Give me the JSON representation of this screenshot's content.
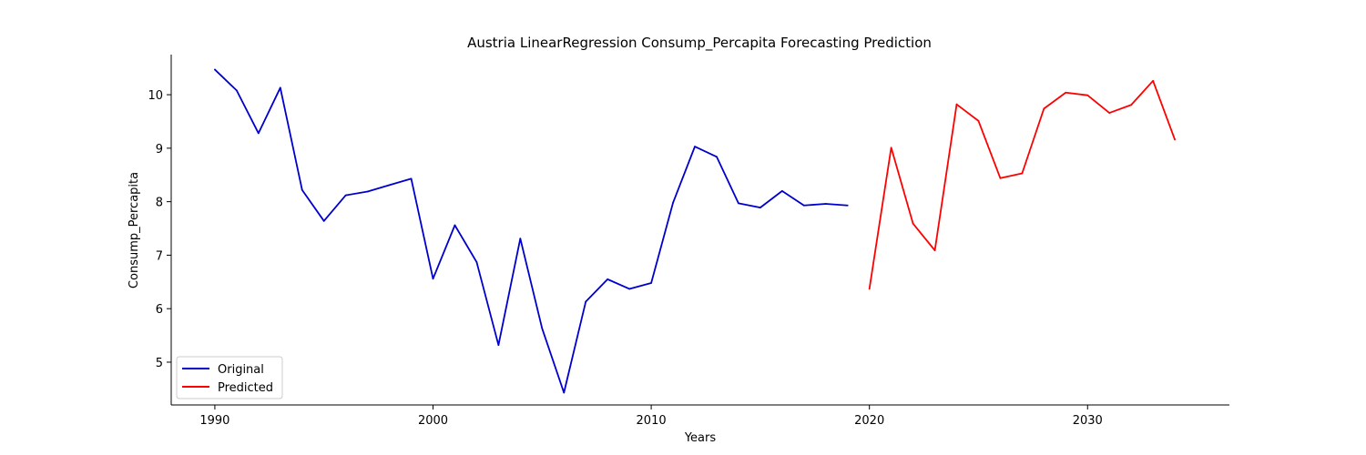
{
  "chart_data": {
    "type": "line",
    "title": "Austria LinearRegression Consump_Percapita Forecasting Prediction",
    "xlabel": "Years",
    "ylabel": "Consump_Percapita",
    "xlim": [
      1988,
      2036.5
    ],
    "ylim": [
      4.2,
      10.75
    ],
    "xticks": [
      1990,
      2000,
      2010,
      2020,
      2030
    ],
    "yticks": [
      5,
      6,
      7,
      8,
      9,
      10
    ],
    "grid": false,
    "legend_position": "lower-left",
    "series": [
      {
        "name": "Original",
        "color": "#0000cc",
        "x": [
          1990,
          1991,
          1992,
          1993,
          1994,
          1995,
          1996,
          1997,
          1998,
          1999,
          2000,
          2001,
          2002,
          2003,
          2004,
          2005,
          2006,
          2007,
          2008,
          2009,
          2010,
          2011,
          2012,
          2013,
          2014,
          2015,
          2016,
          2017,
          2018,
          2019
        ],
        "values": [
          10.47,
          10.08,
          9.28,
          10.13,
          8.22,
          7.64,
          8.12,
          8.19,
          8.31,
          8.43,
          6.56,
          7.56,
          6.87,
          5.32,
          7.31,
          5.63,
          4.43,
          6.13,
          6.55,
          6.37,
          6.48,
          7.98,
          9.03,
          8.84,
          7.97,
          7.89,
          8.2,
          7.93,
          7.96,
          7.93
        ]
      },
      {
        "name": "Predicted",
        "color": "#ff0000",
        "x": [
          2020,
          2021,
          2022,
          2023,
          2024,
          2025,
          2026,
          2027,
          2028,
          2029,
          2030,
          2031,
          2032,
          2033,
          2034
        ],
        "values": [
          6.37,
          9.01,
          7.59,
          7.09,
          9.82,
          9.51,
          8.44,
          8.53,
          9.74,
          10.04,
          9.99,
          9.66,
          9.81,
          10.26,
          9.16
        ]
      }
    ]
  }
}
